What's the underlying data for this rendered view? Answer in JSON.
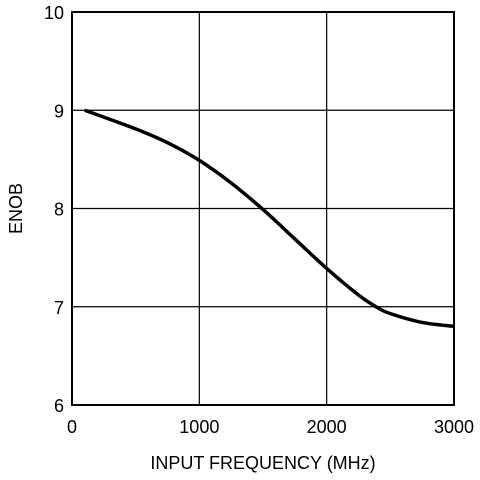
{
  "chart_data": {
    "type": "line",
    "title": "",
    "xlabel": "INPUT FREQUENCY (MHz)",
    "ylabel": "ENOB",
    "xlim": [
      0,
      3000
    ],
    "ylim": [
      6,
      10
    ],
    "x_ticks": [
      0,
      1000,
      2000,
      3000
    ],
    "y_ticks": [
      6,
      7,
      8,
      9,
      10
    ],
    "x_tick_labels": [
      "0",
      "1000",
      "2000",
      "3000"
    ],
    "y_tick_labels": [
      "6",
      "7",
      "8",
      "9",
      "10"
    ],
    "grid": true,
    "legend": "none",
    "series": [
      {
        "color": "#000000",
        "x": [
          100,
          250,
          500,
          750,
          1000,
          1250,
          1500,
          1750,
          2000,
          2250,
          2400,
          2500,
          2750,
          3000
        ],
        "y": [
          9.0,
          8.93,
          8.81,
          8.67,
          8.49,
          8.26,
          7.99,
          7.69,
          7.39,
          7.12,
          6.99,
          6.93,
          6.84,
          6.8
        ]
      }
    ]
  }
}
